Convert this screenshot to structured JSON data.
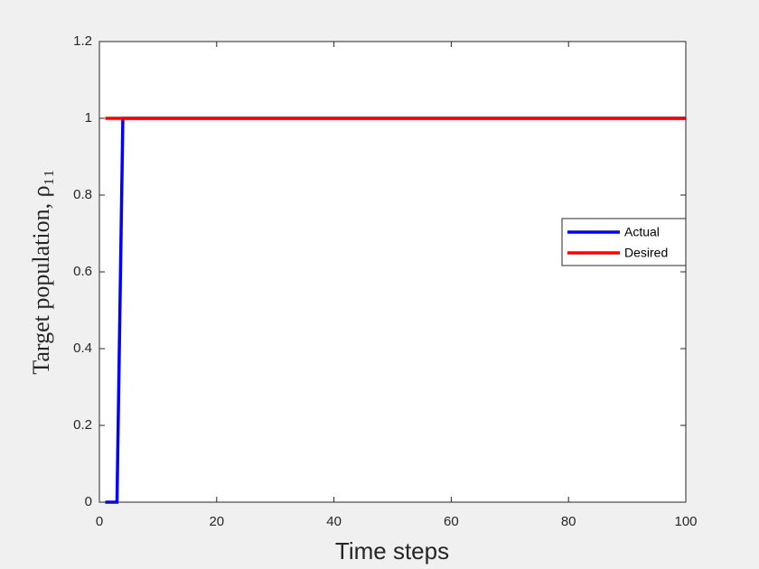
{
  "chart_data": {
    "type": "line",
    "xlabel": "Time steps",
    "ylabel": "Target population, ρ₁₁",
    "xlim": [
      0,
      100
    ],
    "xticks": [
      0,
      20,
      40,
      60,
      80,
      100
    ],
    "ylim": [
      0,
      1.2
    ],
    "yticks": [
      0,
      0.2,
      0.4,
      0.6,
      0.8,
      1,
      1.2
    ],
    "legend": "right",
    "series": [
      {
        "name": "Actual",
        "color": "#0000ff",
        "x": [
          1,
          2,
          3,
          4,
          100
        ],
        "values": [
          0,
          0,
          0,
          1,
          1
        ]
      },
      {
        "name": "Desired",
        "color": "#ff0000",
        "x": [
          1,
          100
        ],
        "values": [
          1,
          1
        ]
      }
    ]
  }
}
